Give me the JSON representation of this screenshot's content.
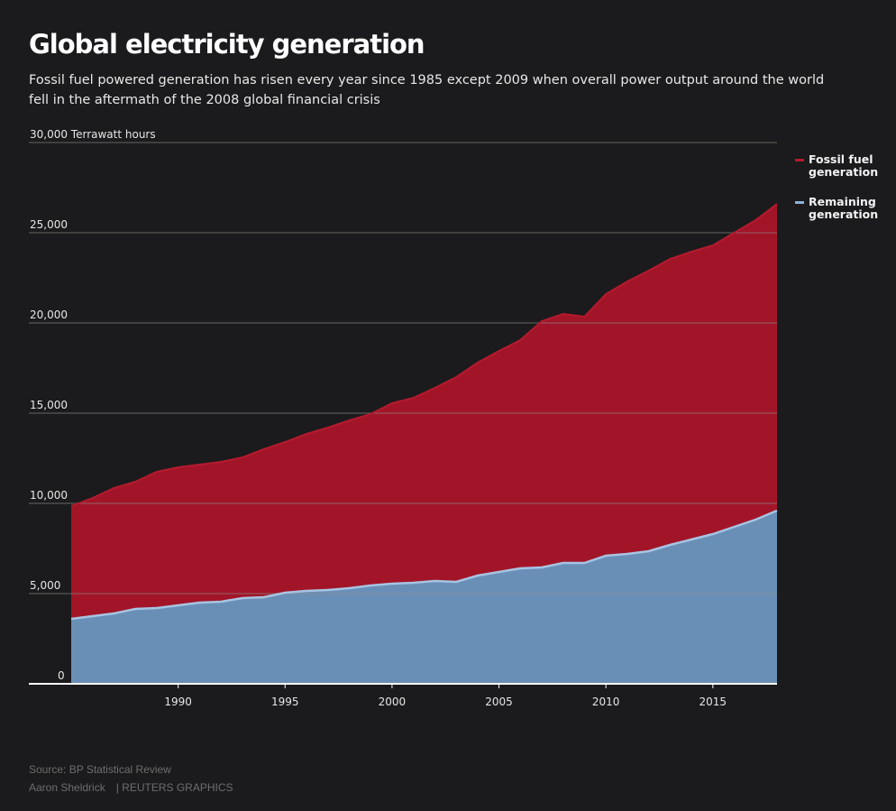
{
  "header": {
    "title": "Global electricity generation",
    "subtitle": "Fossil fuel powered generation has risen every year since 1985 except 2009 when overall power output around the world fell in the aftermath of the 2008 global financial crisis"
  },
  "footer": {
    "source": "Source: BP Statistical Review",
    "author": "Aaron Sheldrick",
    "agency": "| REUTERS GRAPHICS"
  },
  "colors": {
    "background": "#1b1a1c",
    "fossil": "#a21528",
    "fossil_line": "#b51a2e",
    "remaining": "#6a8fb7",
    "remaining_line": "#a6c4e2",
    "grid": "#6a6a6a",
    "axis": "#ffffff"
  },
  "chart_data": {
    "type": "area",
    "title": "Global electricity generation",
    "ylabel": "30,000 Terrawatt hours",
    "xlabel": "",
    "ylim": [
      0,
      30000
    ],
    "xlim": [
      1985,
      2018
    ],
    "stacked": true,
    "y_ticks": [
      {
        "value": 0,
        "label": "0"
      },
      {
        "value": 5000,
        "label": "5,000"
      },
      {
        "value": 10000,
        "label": "10,000"
      },
      {
        "value": 15000,
        "label": "15,000"
      },
      {
        "value": 20000,
        "label": "20,000"
      },
      {
        "value": 25000,
        "label": "25,000"
      },
      {
        "value": 30000,
        "label": "30,000 Terrawatt hours"
      }
    ],
    "x_ticks": [
      {
        "value": 1990,
        "label": "1990"
      },
      {
        "value": 1995,
        "label": "1995"
      },
      {
        "value": 2000,
        "label": "2000"
      },
      {
        "value": 2005,
        "label": "2005"
      },
      {
        "value": 2010,
        "label": "2010"
      },
      {
        "value": 2015,
        "label": "2015"
      }
    ],
    "x": [
      1985,
      1986,
      1987,
      1988,
      1989,
      1990,
      1991,
      1992,
      1993,
      1994,
      1995,
      1996,
      1997,
      1998,
      1999,
      2000,
      2001,
      2002,
      2003,
      2004,
      2005,
      2006,
      2007,
      2008,
      2009,
      2010,
      2011,
      2012,
      2013,
      2014,
      2015,
      2016,
      2017,
      2018
    ],
    "series": [
      {
        "name": "Remaining generation",
        "values": [
          3600,
          3750,
          3900,
          4150,
          4200,
          4350,
          4500,
          4550,
          4750,
          4800,
          5050,
          5150,
          5200,
          5300,
          5450,
          5550,
          5600,
          5700,
          5650,
          6000,
          6200,
          6400,
          6450,
          6700,
          6700,
          7100,
          7200,
          7350,
          7700,
          8000,
          8300,
          8700,
          9100,
          9600
        ]
      },
      {
        "name": "Fossil fuel generation",
        "values": [
          6250,
          6550,
          6950,
          7050,
          7550,
          7650,
          7650,
          7750,
          7800,
          8200,
          8350,
          8700,
          9000,
          9300,
          9500,
          10000,
          10250,
          10700,
          11350,
          11800,
          12250,
          12650,
          13650,
          13800,
          13650,
          14500,
          15100,
          15550,
          15850,
          15950,
          16000,
          16300,
          16600,
          17000
        ]
      }
    ],
    "legend": {
      "position": "right",
      "entries": [
        {
          "name": "Fossil fuel generation",
          "line1": "Fossil fuel",
          "line2": "generation"
        },
        {
          "name": "Remaining generation",
          "line1": "Remaining",
          "line2": "generation"
        }
      ]
    }
  }
}
